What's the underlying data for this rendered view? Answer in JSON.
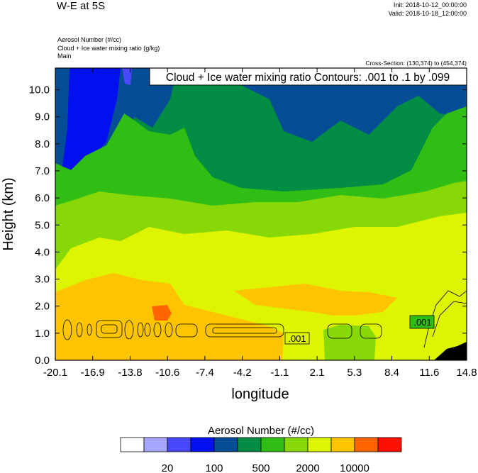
{
  "header": {
    "title": "W-E at 5S",
    "init": "Init: 2018-10-12_00:00:00",
    "valid": "Valid: 2018-10-18_12:00:00",
    "fields": [
      "Aerosol Number   (#/cc)",
      "Cloud + Ice water mixing ratio   (g/kg)",
      "Main"
    ],
    "cross_section": "Cross-Section: (130,374) to (454,374)"
  },
  "chart_data": {
    "type": "heatmap",
    "title": "W-E at 5S",
    "xlabel": "longitude",
    "ylabel": "Height (km)",
    "xlim": [
      -20.1,
      14.8
    ],
    "ylim": [
      0.0,
      10.8
    ],
    "xticks": [
      "-20.1",
      "-16.9",
      "-13.8",
      "-10.6",
      "-7.4",
      "-4.2",
      "-1.1",
      "2.1",
      "5.3",
      "8.4",
      "11.6",
      "14.8"
    ],
    "yticks": [
      "0.0",
      "1.0",
      "2.0",
      "3.0",
      "4.0",
      "5.0",
      "6.0",
      "7.0",
      "8.0",
      "9.0",
      "10.0"
    ],
    "contour_annotation": "Cloud + Ice water mixing ratio Contours: .001 to .1 by .099",
    "contour_labels": [
      ".001",
      ".001"
    ],
    "colorbar": {
      "title": "Aerosol Number  (#/cc)",
      "colors": [
        "#FFFFFF",
        "#A6A6FF",
        "#4848FF",
        "#0010EE",
        "#054E96",
        "#038C44",
        "#30BE14",
        "#88D808",
        "#DDF500",
        "#FFC400",
        "#FF6600",
        "#FF1000"
      ],
      "labels": [
        "20",
        "100",
        "500",
        "2000",
        "10000"
      ],
      "label_after_box": [
        2,
        4,
        6,
        8,
        10
      ]
    }
  }
}
